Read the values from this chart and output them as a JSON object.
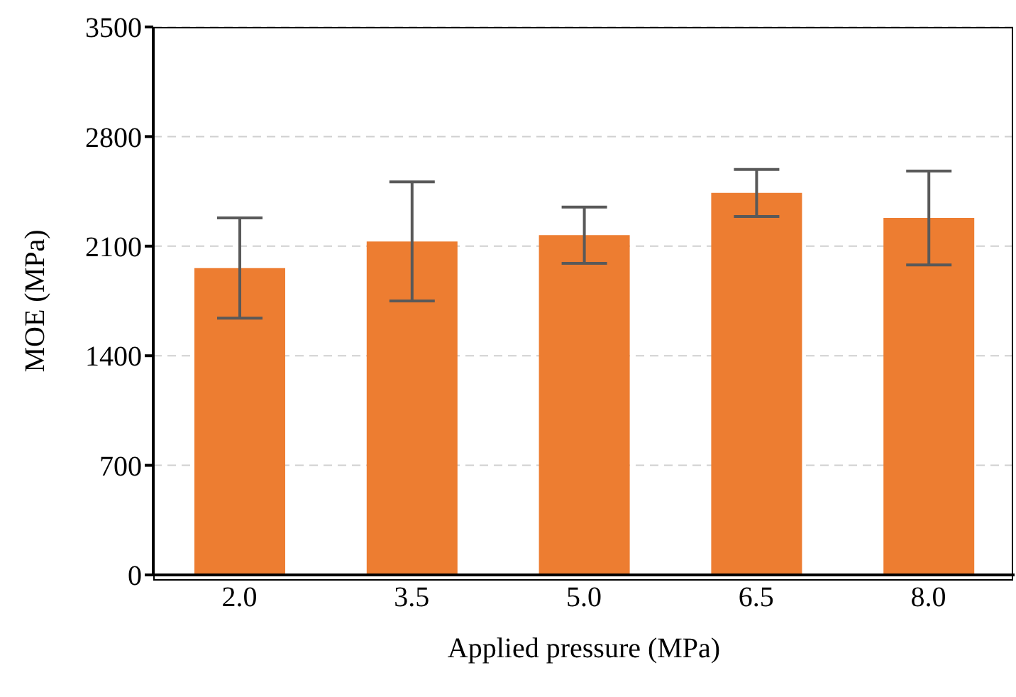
{
  "chart_data": {
    "type": "bar",
    "xlabel": "Applied pressure (MPa)",
    "ylabel": "MOE (MPa)",
    "categories": [
      "2.0",
      "3.5",
      "5.0",
      "6.5",
      "8.0"
    ],
    "values": [
      1960,
      2130,
      2170,
      2440,
      2280
    ],
    "errors": [
      320,
      380,
      180,
      150,
      300
    ],
    "color": "#ed7d31",
    "ylim": [
      0,
      3500
    ],
    "yticks": [
      0,
      700,
      1400,
      2100,
      2800,
      3500
    ],
    "grid": "y"
  }
}
